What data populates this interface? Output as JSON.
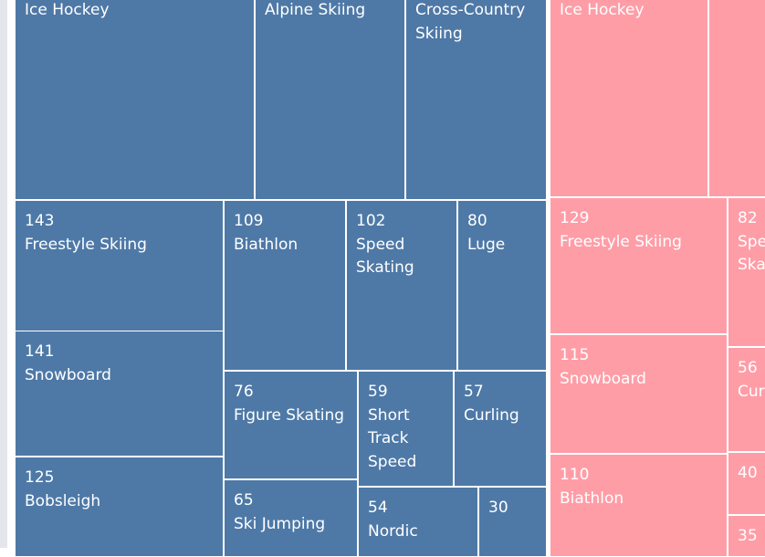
{
  "chart_data": {
    "type": "treemap",
    "palette": {
      "left_group": "#4e79a7",
      "right_group": "#ff9da7",
      "border": "#ffffff"
    },
    "groups": [
      {
        "color": "#4e79a7",
        "items": [
          {
            "label": "Ice Hockey",
            "value": null
          },
          {
            "label": "Alpine Skiing",
            "value": null
          },
          {
            "label": "Cross-Country Skiing",
            "value": null
          },
          {
            "label": "Freestyle Skiing",
            "value": 143
          },
          {
            "label": "Biathlon",
            "value": 109
          },
          {
            "label": "Speed Skating",
            "value": 102
          },
          {
            "label": "Luge",
            "value": 80
          },
          {
            "label": "Snowboard",
            "value": 141
          },
          {
            "label": "Figure Skating",
            "value": 76
          },
          {
            "label": "Short Track Speed",
            "value": 59
          },
          {
            "label": "Curling",
            "value": 57
          },
          {
            "label": "Bobsleigh",
            "value": 125
          },
          {
            "label": "Ski Jumping",
            "value": 65
          },
          {
            "label": "Nordic",
            "value": 54
          },
          {
            "label": "",
            "value": 30
          }
        ]
      },
      {
        "color": "#ff9da7",
        "items": [
          {
            "label": "Ice Hockey",
            "value": null
          },
          {
            "label": "",
            "value": null
          },
          {
            "label": "Freestyle Skiing",
            "value": 129
          },
          {
            "label": "Spe Ska",
            "value": 82
          },
          {
            "label": "Snowboard",
            "value": 115
          },
          {
            "label": "Cur",
            "value": 56
          },
          {
            "label": "Biathlon",
            "value": 110
          },
          {
            "label": "",
            "value": 40
          },
          {
            "label": "",
            "value": 35
          }
        ]
      }
    ]
  }
}
